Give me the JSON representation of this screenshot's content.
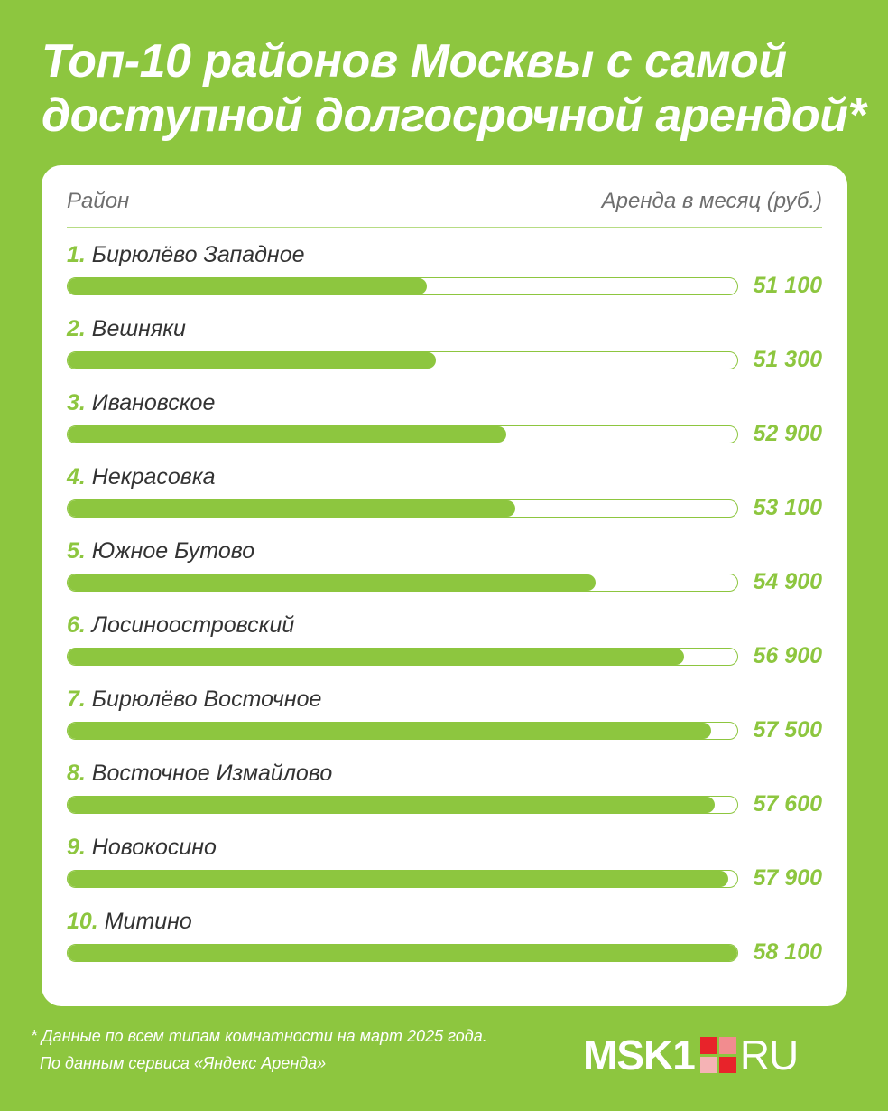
{
  "title": "Топ-10 районов Москвы с самой доступной долгосрочной арендой*",
  "header": {
    "left": "Район",
    "right": "Аренда в месяц (руб.)"
  },
  "chart_data": {
    "type": "bar",
    "orientation": "horizontal",
    "categories": [
      "Бирюлёво Западное",
      "Вешняки",
      "Ивановское",
      "Некрасовка",
      "Южное Бутово",
      "Лосиноостровский",
      "Бирюлёво Восточное",
      "Восточное Измайлово",
      "Новокосино",
      "Митино"
    ],
    "ranks": [
      "1.",
      "2.",
      "3.",
      "4.",
      "5.",
      "6.",
      "7.",
      "8.",
      "9.",
      "10."
    ],
    "values": [
      51100,
      51300,
      52900,
      53100,
      54900,
      56900,
      57500,
      57600,
      57900,
      58100
    ],
    "value_labels": [
      "51 100",
      "51 300",
      "52 900",
      "53 100",
      "54 900",
      "56 900",
      "57 500",
      "57 600",
      "57 900",
      "58 100"
    ],
    "xlim": [
      0,
      58100
    ],
    "grid": false,
    "colors": {
      "bar": "#8dc63f",
      "track": "#ffffff",
      "rank": "#8dc63f",
      "value": "#8dc63f"
    }
  },
  "footnote": {
    "line1": "* Данные по всем типам комнатности на март 2025 года.",
    "line2": "По данным сервиса «Яндекс Аренда»"
  },
  "logo": {
    "left": "MSK1",
    "right": "RU",
    "mark_colors": [
      "#e8232a",
      "#f28c8f",
      "#f5b3b5",
      "#e8232a"
    ]
  },
  "colors": {
    "background": "#8dc63f",
    "card": "#ffffff",
    "text": "#333333"
  }
}
